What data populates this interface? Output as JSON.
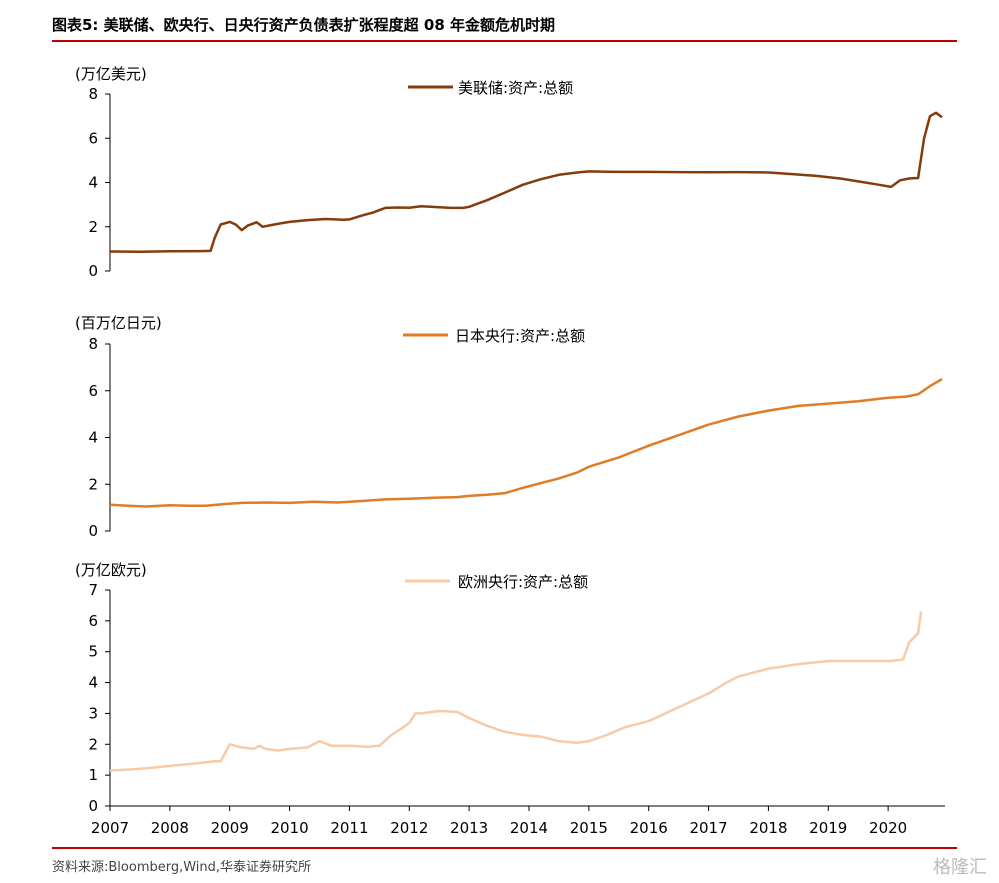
{
  "header": {
    "title": "图表5:   美联储、欧央行、日央行资产负债表扩张程度超 08 年金额危机时期"
  },
  "footer": {
    "source": "资料来源:Bloomberg,Wind,华泰证券研究所",
    "watermark": "格隆汇"
  },
  "colors": {
    "accent_rule": "#c00000",
    "fed": "#843c0c",
    "boj": "#e07b26",
    "ecb": "#f8cba6"
  },
  "chart_data": [
    {
      "type": "line",
      "unit_label": "(万亿美元)",
      "legend": "美联储:资产:总额",
      "legend_position": "top-center",
      "ylim": [
        0,
        8
      ],
      "yticks": [
        0,
        2,
        4,
        6,
        8
      ],
      "xlim": [
        2007,
        2020.95
      ],
      "grid": false,
      "series": [
        {
          "name": "美联储:资产:总额",
          "x": [
            2007.0,
            2007.5,
            2008.0,
            2008.5,
            2008.68,
            2008.75,
            2008.85,
            2009.0,
            2009.1,
            2009.2,
            2009.3,
            2009.45,
            2009.55,
            2009.7,
            2009.85,
            2010.0,
            2010.3,
            2010.6,
            2010.9,
            2011.0,
            2011.2,
            2011.4,
            2011.6,
            2011.8,
            2012.0,
            2012.2,
            2012.5,
            2012.7,
            2012.9,
            2013.0,
            2013.3,
            2013.6,
            2013.9,
            2014.2,
            2014.5,
            2014.8,
            2015.0,
            2015.3,
            2015.6,
            2016.0,
            2016.5,
            2017.0,
            2017.5,
            2018.0,
            2018.4,
            2018.8,
            2019.2,
            2019.5,
            2019.8,
            2019.95,
            2020.05,
            2020.2,
            2020.35,
            2020.45,
            2020.5,
            2020.6,
            2020.7,
            2020.8,
            2020.9
          ],
          "y": [
            0.88,
            0.87,
            0.89,
            0.9,
            0.91,
            1.5,
            2.1,
            2.22,
            2.1,
            1.85,
            2.05,
            2.2,
            2.0,
            2.08,
            2.15,
            2.22,
            2.3,
            2.35,
            2.32,
            2.33,
            2.5,
            2.65,
            2.85,
            2.87,
            2.86,
            2.93,
            2.88,
            2.85,
            2.85,
            2.9,
            3.2,
            3.55,
            3.9,
            4.15,
            4.35,
            4.45,
            4.5,
            4.49,
            4.48,
            4.48,
            4.47,
            4.46,
            4.47,
            4.45,
            4.38,
            4.3,
            4.18,
            4.05,
            3.92,
            3.85,
            3.8,
            4.1,
            4.18,
            4.2,
            4.2,
            6.0,
            7.0,
            7.15,
            6.95
          ]
        }
      ]
    },
    {
      "type": "line",
      "unit_label": "(百万亿日元)",
      "legend": "日本央行:资产:总额",
      "legend_position": "top-center",
      "ylim": [
        0,
        8
      ],
      "yticks": [
        0,
        2,
        4,
        6,
        8
      ],
      "xlim": [
        2007,
        2020.95
      ],
      "grid": false,
      "series": [
        {
          "name": "日本央行:资产:总额",
          "x": [
            2007.0,
            2007.3,
            2007.6,
            2008.0,
            2008.3,
            2008.6,
            2008.9,
            2009.2,
            2009.6,
            2010.0,
            2010.4,
            2010.8,
            2011.0,
            2011.3,
            2011.6,
            2012.0,
            2012.4,
            2012.8,
            2013.0,
            2013.3,
            2013.6,
            2013.9,
            2014.2,
            2014.5,
            2014.8,
            2015.0,
            2015.5,
            2016.0,
            2016.5,
            2017.0,
            2017.5,
            2018.0,
            2018.5,
            2019.0,
            2019.5,
            2020.0,
            2020.3,
            2020.5,
            2020.7,
            2020.9
          ],
          "y": [
            1.12,
            1.08,
            1.05,
            1.1,
            1.08,
            1.08,
            1.15,
            1.2,
            1.22,
            1.2,
            1.25,
            1.22,
            1.25,
            1.3,
            1.35,
            1.38,
            1.42,
            1.45,
            1.5,
            1.55,
            1.62,
            1.85,
            2.05,
            2.25,
            2.5,
            2.75,
            3.15,
            3.65,
            4.1,
            4.55,
            4.9,
            5.15,
            5.35,
            5.45,
            5.55,
            5.7,
            5.75,
            5.85,
            6.2,
            6.5
          ]
        }
      ]
    },
    {
      "type": "line",
      "unit_label": "(万亿欧元)",
      "legend": "欧洲央行:资产:总额",
      "legend_position": "top-center",
      "ylim": [
        0,
        7
      ],
      "yticks": [
        0,
        1,
        2,
        3,
        4,
        5,
        6,
        7
      ],
      "xlim": [
        2007,
        2020.95
      ],
      "grid": false,
      "series": [
        {
          "name": "欧洲央行:资产:总额",
          "x": [
            2007.0,
            2007.3,
            2007.6,
            2008.0,
            2008.3,
            2008.6,
            2008.75,
            2008.85,
            2009.0,
            2009.2,
            2009.4,
            2009.5,
            2009.6,
            2009.8,
            2010.0,
            2010.3,
            2010.5,
            2010.7,
            2011.0,
            2011.3,
            2011.5,
            2011.7,
            2011.9,
            2012.0,
            2012.1,
            2012.2,
            2012.5,
            2012.8,
            2013.0,
            2013.3,
            2013.6,
            2013.9,
            2014.2,
            2014.5,
            2014.8,
            2015.0,
            2015.3,
            2015.6,
            2016.0,
            2016.5,
            2017.0,
            2017.3,
            2017.5,
            2018.0,
            2018.5,
            2019.0,
            2019.5,
            2020.0,
            2020.15,
            2020.25,
            2020.35,
            2020.5,
            2020.55
          ],
          "y": [
            1.15,
            1.18,
            1.22,
            1.3,
            1.35,
            1.42,
            1.45,
            1.45,
            2.0,
            1.9,
            1.85,
            1.95,
            1.85,
            1.8,
            1.85,
            1.9,
            2.1,
            1.95,
            1.95,
            1.92,
            1.95,
            2.3,
            2.55,
            2.7,
            3.0,
            3.0,
            3.08,
            3.05,
            2.85,
            2.6,
            2.4,
            2.3,
            2.25,
            2.1,
            2.05,
            2.1,
            2.3,
            2.55,
            2.75,
            3.2,
            3.65,
            4.0,
            4.2,
            4.45,
            4.6,
            4.7,
            4.7,
            4.7,
            4.72,
            4.75,
            5.3,
            5.6,
            6.3
          ]
        }
      ]
    }
  ]
}
